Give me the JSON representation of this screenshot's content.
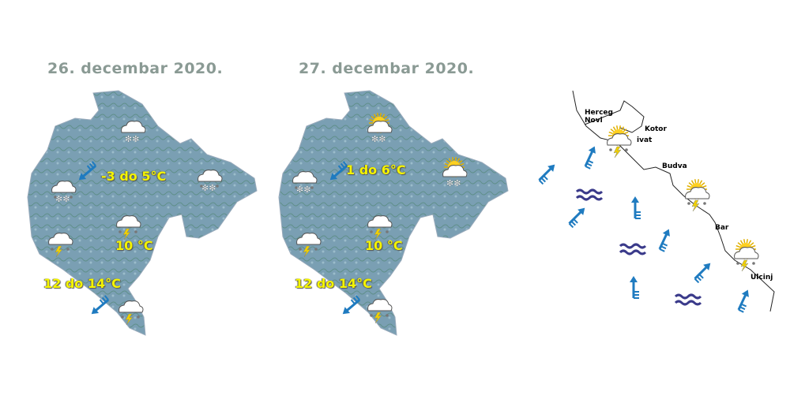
{
  "maps": [
    {
      "date": "26. decembar 2020.",
      "temps": [
        "-3 do 5°C",
        "10 °C",
        "12 do 14°C"
      ],
      "icons": [
        "cloud-snow",
        "cloud-rain-snow",
        "cloud-rain-snow",
        "cloud-thunder-rain",
        "cloud-thunder-rain",
        "cloud-thunder-rain"
      ],
      "wind": [
        "wind-arrow-southwest",
        "wind-arrow-southwest"
      ]
    },
    {
      "date": "27. decembar 2020.",
      "temps": [
        "1 do 6°C",
        "10 °C",
        "12 do 14°C"
      ],
      "icons": [
        "sun-cloud-snow",
        "sun-cloud-snow",
        "cloud-rain-snow",
        "cloud-thunder-rain",
        "cloud-thunder-rain",
        "cloud-thunder-rain"
      ],
      "wind": [
        "wind-arrow-southwest",
        "wind-arrow-southwest"
      ]
    }
  ],
  "coast": {
    "cities": [
      "Herceg",
      "Novi",
      "Kotor",
      "ivat",
      "Budva",
      "Bar",
      "Ulcinj"
    ],
    "icons": [
      "sun-cloud-thunder-rain",
      "sun-cloud-thunder-rain",
      "sun-cloud-thunder-rain"
    ],
    "sea_state": "moderate-waves",
    "wind": "wind-arrow-northeast"
  },
  "colors": {
    "land": "#7a9fb3",
    "temp_text": "#f4f400",
    "arrow": "#1f7bc0",
    "waves": "#3a3a8a"
  }
}
